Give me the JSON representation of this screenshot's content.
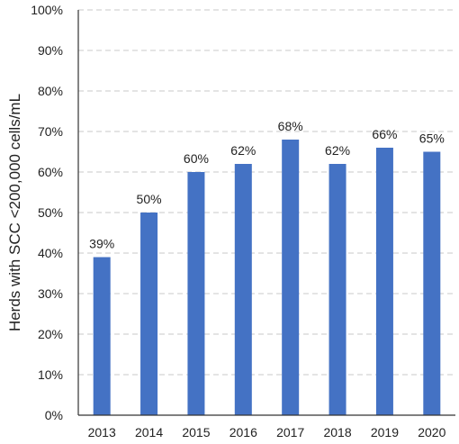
{
  "chart_data": {
    "type": "bar",
    "categories": [
      "2013",
      "2014",
      "2015",
      "2016",
      "2017",
      "2018",
      "2019",
      "2020"
    ],
    "values": [
      39,
      50,
      60,
      62,
      68,
      62,
      66,
      65
    ],
    "data_labels": [
      "39%",
      "50%",
      "60%",
      "62%",
      "68%",
      "62%",
      "66%",
      "65%"
    ],
    "title": "",
    "xlabel": "",
    "ylabel": "Herds with SCC <200,000 cells/mL",
    "ylim": [
      0,
      100
    ],
    "yticks": [
      0,
      10,
      20,
      30,
      40,
      50,
      60,
      70,
      80,
      90,
      100
    ],
    "ytick_labels": [
      "0%",
      "10%",
      "20%",
      "30%",
      "40%",
      "50%",
      "60%",
      "70%",
      "80%",
      "90%",
      "100%"
    ],
    "grid": true,
    "bar_color": "#4472C4"
  }
}
